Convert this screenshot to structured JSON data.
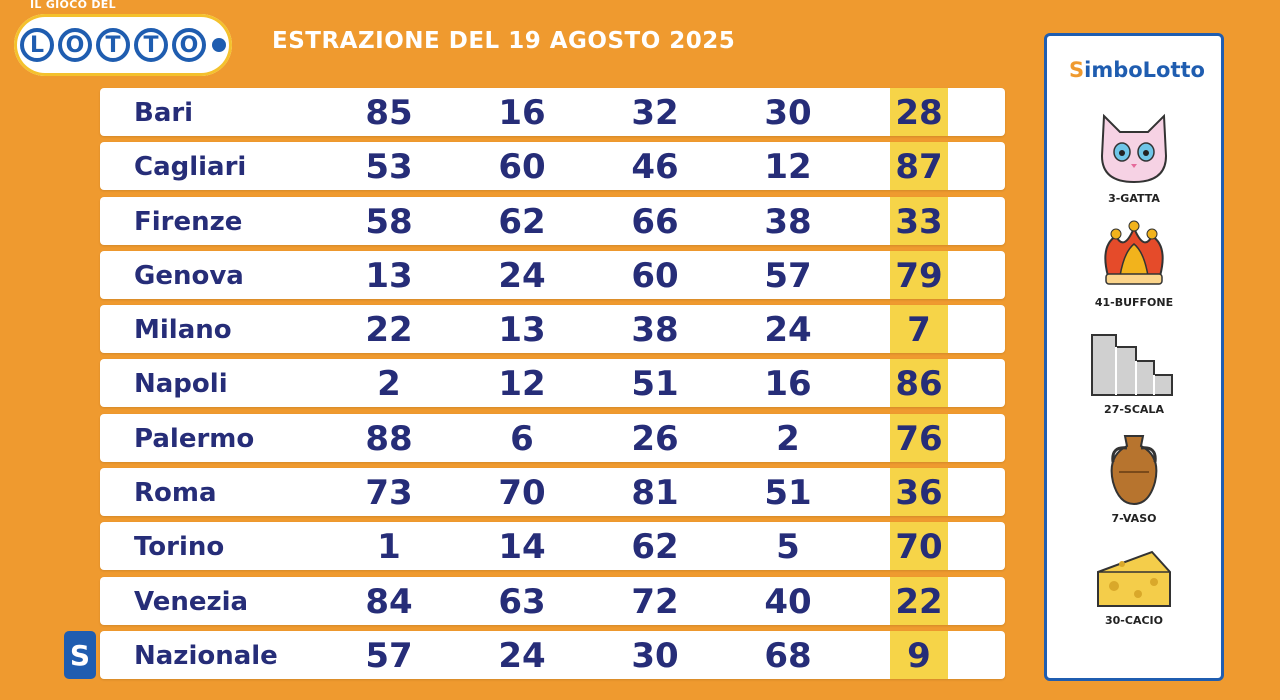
{
  "header": {
    "logo_small": "IL GIOCO DEL",
    "logo_letters": [
      "L",
      "O",
      "T",
      "T",
      "O"
    ],
    "title": "ESTRAZIONE DEL 19 AGOSTO 2025"
  },
  "draws": [
    {
      "city": "Bari",
      "numbers": [
        "85",
        "16",
        "32",
        "30",
        "28"
      ]
    },
    {
      "city": "Cagliari",
      "numbers": [
        "53",
        "60",
        "46",
        "12",
        "87"
      ]
    },
    {
      "city": "Firenze",
      "numbers": [
        "58",
        "62",
        "66",
        "38",
        "33"
      ]
    },
    {
      "city": "Genova",
      "numbers": [
        "13",
        "24",
        "60",
        "57",
        "79"
      ]
    },
    {
      "city": "Milano",
      "numbers": [
        "22",
        "13",
        "38",
        "24",
        "7"
      ]
    },
    {
      "city": "Napoli",
      "numbers": [
        "2",
        "12",
        "51",
        "16",
        "86"
      ]
    },
    {
      "city": "Palermo",
      "numbers": [
        "88",
        "6",
        "26",
        "2",
        "76"
      ]
    },
    {
      "city": "Roma",
      "numbers": [
        "73",
        "70",
        "81",
        "51",
        "36"
      ]
    },
    {
      "city": "Torino",
      "numbers": [
        "1",
        "14",
        "62",
        "5",
        "70"
      ]
    },
    {
      "city": "Venezia",
      "numbers": [
        "84",
        "63",
        "72",
        "40",
        "22"
      ]
    },
    {
      "city": "Nazionale",
      "numbers": [
        "57",
        "24",
        "30",
        "68",
        "9"
      ]
    }
  ],
  "nazionale_badge": "S",
  "simbolotto": {
    "title_s": "S",
    "title_rest": "imboLotto",
    "symbols": [
      {
        "label": "3-GATTA",
        "icon": "cat-icon"
      },
      {
        "label": "41-BUFFONE",
        "icon": "jester-hat-icon"
      },
      {
        "label": "27-SCALA",
        "icon": "stairs-icon"
      },
      {
        "label": "7-VASO",
        "icon": "vase-icon"
      },
      {
        "label": "30-CACIO",
        "icon": "cheese-icon"
      }
    ]
  },
  "colors": {
    "background": "#ef9a2f",
    "row_bg": "#ffffff",
    "text": "#262d78",
    "highlight": "#f6d448",
    "brand_blue": "#1f5db0"
  }
}
